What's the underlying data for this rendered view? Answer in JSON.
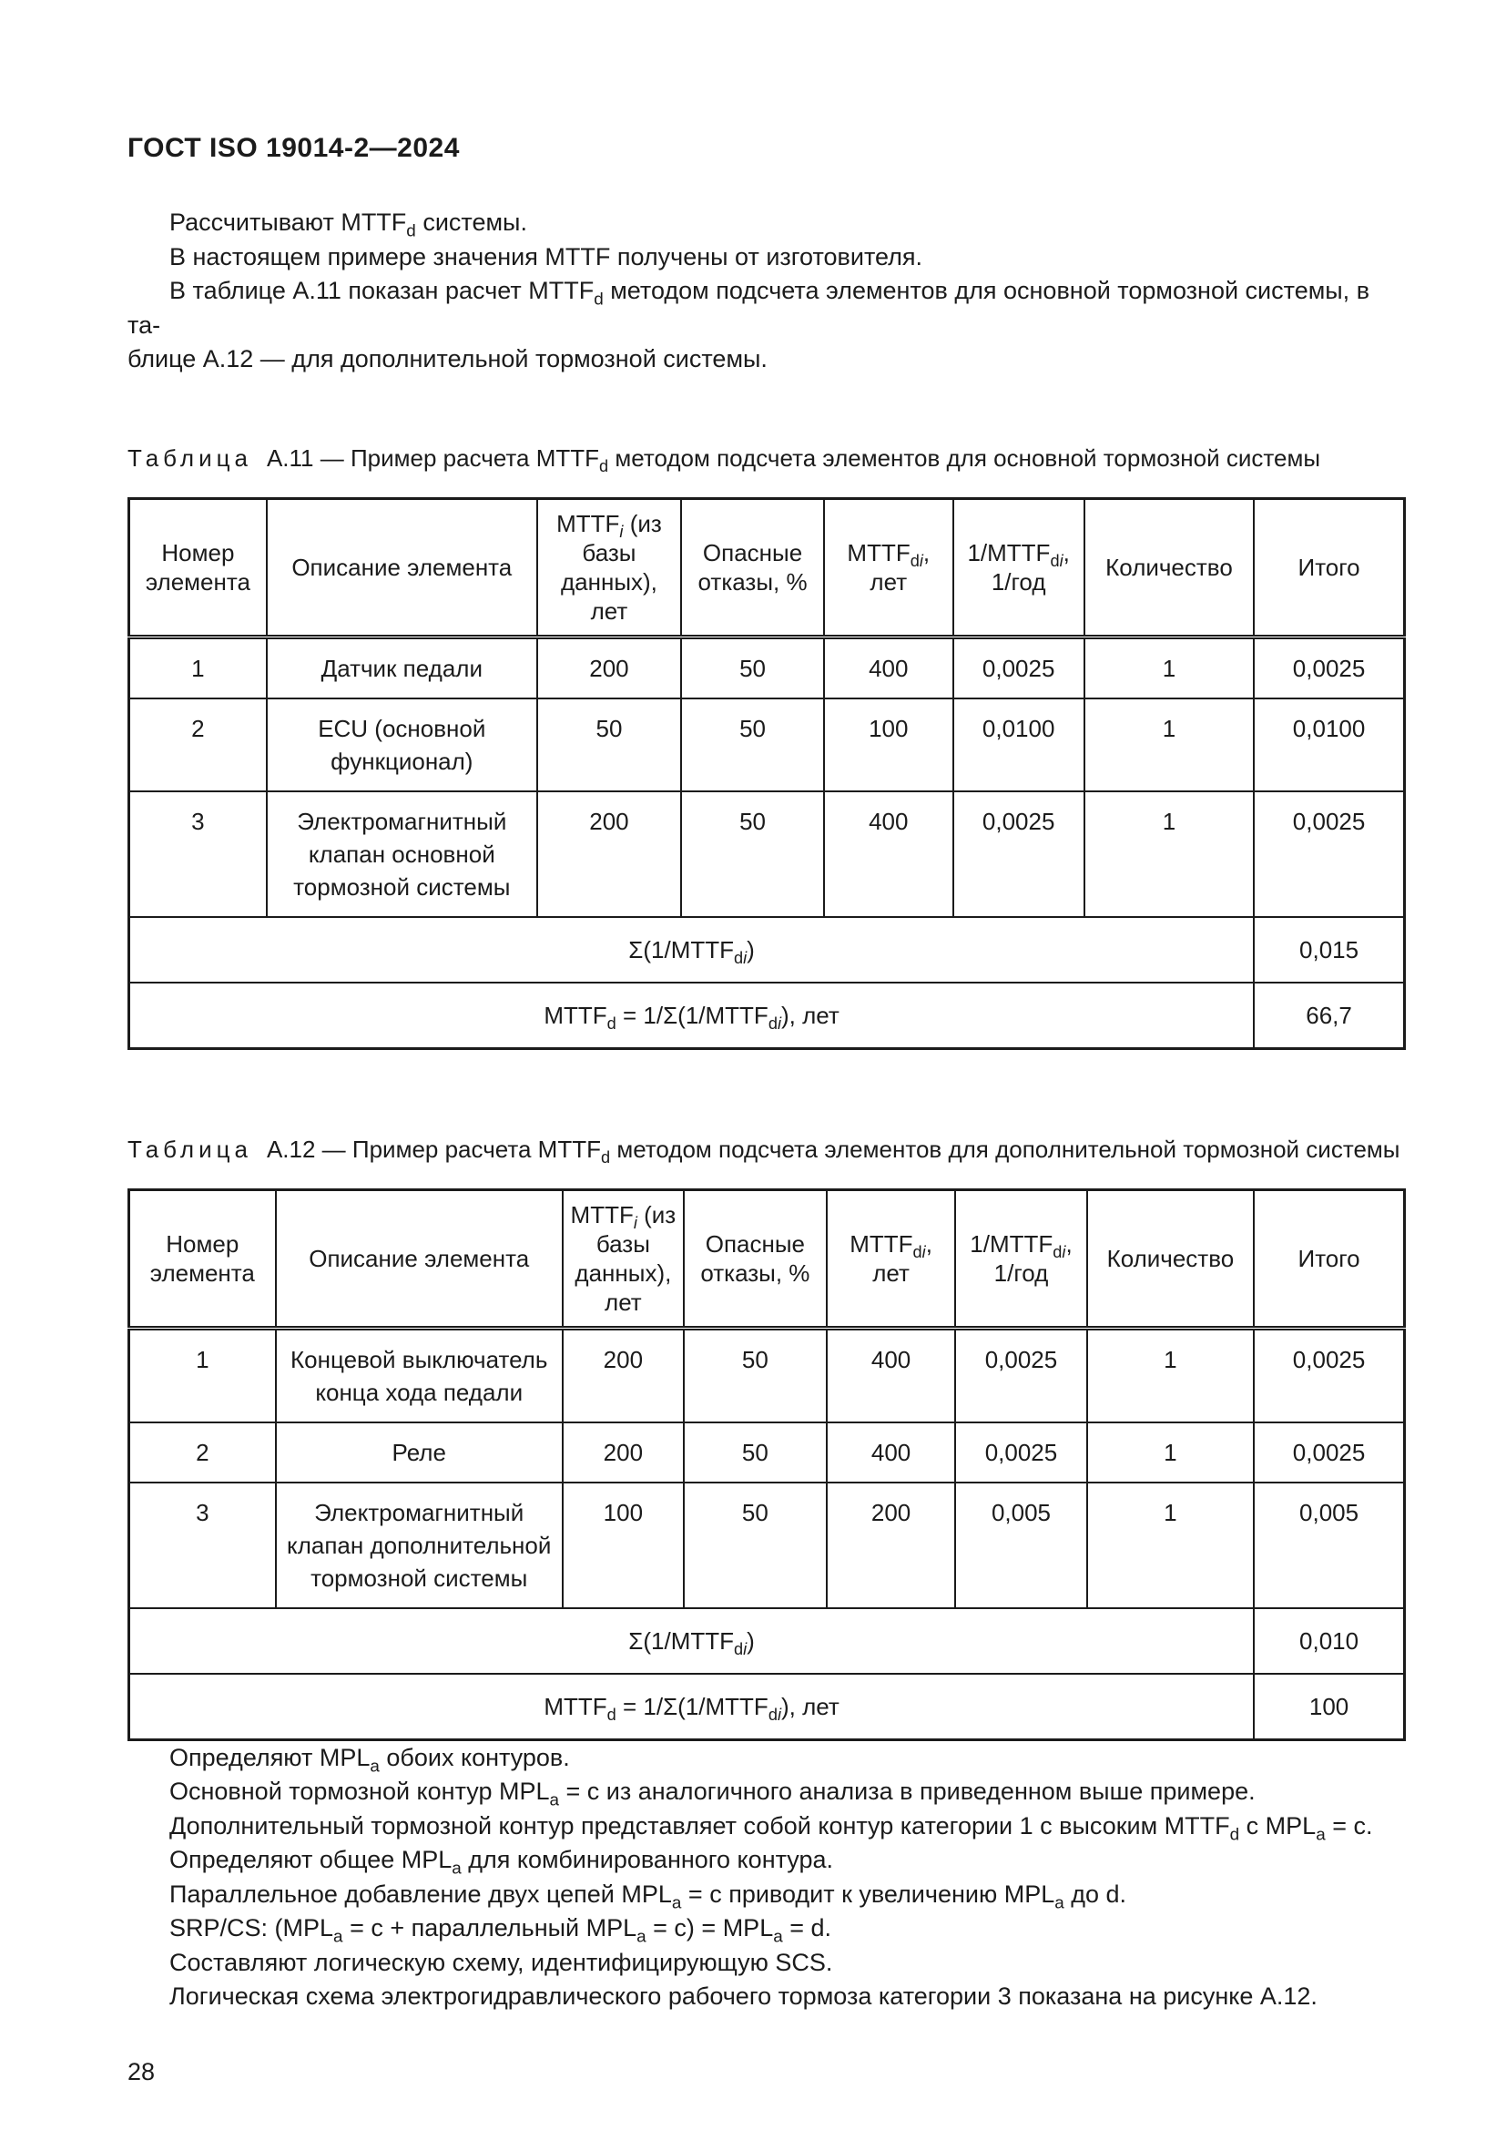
{
  "page": {
    "title": "ГОСТ ISO 19014-2—2024",
    "page_number": "28"
  },
  "intro_paragraphs": [
    {
      "text": "Рассчитывают MTTF~d~ системы.",
      "indent": true
    },
    {
      "text": "В настоящем примере значения MTTF получены от изготовителя.",
      "indent": true
    },
    {
      "text": "В таблице А.11 показан расчет MTTF~d~ методом подсчета элементов для основной тормозной системы, в та-",
      "indent": true
    },
    {
      "text": "блице А.12 — для дополнительной тормозной системы.",
      "indent": false
    }
  ],
  "tables": [
    {
      "caption_word": "Таблица",
      "caption_number": "А.11",
      "caption_dash": "—",
      "caption_title": "Пример расчета MTTF~d~ методом подсчета элементов для основной тормозной системы",
      "columns": [
        "Номер элемента",
        "Описание элемента",
        "MTTF~*i*~ (из базы данных), лет",
        "Опасные отказы, %",
        "MTTF~d*i*~, лет",
        "1/MTTF~d*i*~, 1/год",
        "Количество",
        "Итого"
      ],
      "rows": [
        [
          "1",
          "Датчик педали",
          "200",
          "50",
          "400",
          "0,0025",
          "1",
          "0,0025"
        ],
        [
          "2",
          "ECU (основной функционал)",
          "50",
          "50",
          "100",
          "0,0100",
          "1",
          "0,0100"
        ],
        [
          "3",
          "Электромагнитный клапан основной тормозной системы",
          "200",
          "50",
          "400",
          "0,0025",
          "1",
          "0,0025"
        ]
      ],
      "summary": [
        {
          "label": "Σ(1/MTTF~d*i*~)",
          "value": "0,015"
        },
        {
          "label": "MTTF~d~ = 1/Σ(1/MTTF~d*i*~), лет",
          "value": "66,7"
        }
      ]
    },
    {
      "caption_word": "Таблица",
      "caption_number": "А.12",
      "caption_dash": "—",
      "caption_title": "Пример расчета MTTF~d~ методом подсчета элементов для дополнительной тормозной системы",
      "columns": [
        "Номер элемента",
        "Описание элемента",
        "MTTF~*i*~ (из базы данных), лет",
        "Опасные отказы, %",
        "MTTF~d*i*~, лет",
        "1/MTTF~d*i*~, 1/год",
        "Количество",
        "Итого"
      ],
      "rows": [
        [
          "1",
          "Концевой выключатель конца хода педали",
          "200",
          "50",
          "400",
          "0,0025",
          "1",
          "0,0025"
        ],
        [
          "2",
          "Реле",
          "200",
          "50",
          "400",
          "0,0025",
          "1",
          "0,0025"
        ],
        [
          "3",
          "Электромагнитный клапан дополнительной тормозной системы",
          "100",
          "50",
          "200",
          "0,005",
          "1",
          "0,005"
        ]
      ],
      "summary": [
        {
          "label": "Σ(1/MTTF~d*i*~)",
          "value": "0,010"
        },
        {
          "label": "MTTF~d~ = 1/Σ(1/MTTF~d*i*~), лет",
          "value": "100"
        }
      ]
    }
  ],
  "outro_paragraphs": [
    {
      "text": "Определяют MPL~a~ обоих контуров.",
      "indent": true
    },
    {
      "text": "Основной тормозной контур MPL~a~ = c из аналогичного анализа в приведенном выше примере.",
      "indent": true
    },
    {
      "text": "Дополнительный тормозной контур представляет собой контур категории 1 с высоким MTTF~d~ с MPL~a~ = c.",
      "indent": true
    },
    {
      "text": "Определяют общее MPL~a~ для комбинированного контура.",
      "indent": true
    },
    {
      "text": "Параллельное добавление двух цепей MPL~a~ = c приводит к увеличению MPL~a~ до d.",
      "indent": true
    },
    {
      "text": "SRP/CS: (MPL~a~ = c + параллельный MPL~a~ = c) = MPL~a~ = d.",
      "indent": true
    },
    {
      "text": "Составляют логическую схему, идентифицирующую SCS.",
      "indent": true
    },
    {
      "text": "Логическая схема электрогидравлического рабочего тормоза категории 3 показана на рисунке А.12.",
      "indent": true
    }
  ]
}
